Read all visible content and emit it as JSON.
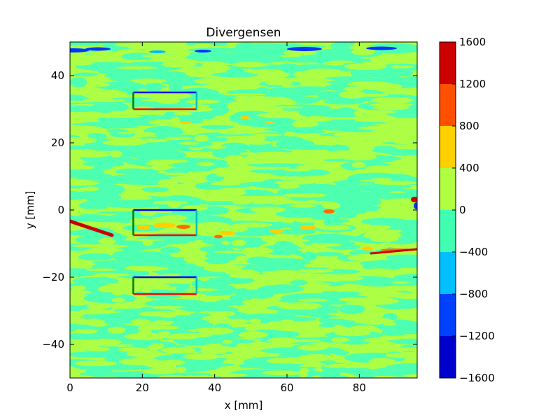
{
  "chart_data": {
    "type": "heatmap",
    "title": "Divergensen",
    "xlabel": "x [mm]",
    "ylabel": "y [mm]",
    "xlim": [
      0,
      96
    ],
    "ylim": [
      -50,
      50
    ],
    "xticks": [
      0,
      20,
      40,
      60,
      80
    ],
    "yticks": [
      -40,
      -20,
      0,
      20,
      40
    ],
    "xtick_labels": [
      "0",
      "20",
      "40",
      "60",
      "80"
    ],
    "ytick_labels": [
      "−40",
      "−20",
      "0",
      "20",
      "40"
    ],
    "colorbar": {
      "range": [
        -1600,
        1600
      ],
      "levels": [
        -1600,
        -1200,
        -800,
        -400,
        0,
        400,
        800,
        1200,
        1600
      ],
      "tick_labels": [
        "−1600",
        "−1200",
        "−800",
        "−400",
        "0",
        "400",
        "800",
        "1200",
        "1600"
      ],
      "colors": [
        "#0000cd",
        "#0040ff",
        "#00c0ff",
        "#40ffb0",
        "#b0ff40",
        "#ffd000",
        "#ff5000",
        "#cd0000"
      ]
    },
    "field_colors": {
      "negative_band": "#4dffb0",
      "positive_band": "#adff45",
      "strong_positive": "#ffd000",
      "stronger_positive": "#ff6a00",
      "max_positive": "#cc0000",
      "strong_negative": "#0033ff",
      "mid_negative": "#00b8ff"
    },
    "rectangles": [
      {
        "name": "box-top",
        "x": [
          17.5,
          35
        ],
        "y": [
          30,
          35
        ]
      },
      {
        "name": "box-middle",
        "x": [
          17.5,
          35
        ],
        "y": [
          -7.5,
          0
        ]
      },
      {
        "name": "box-bottom",
        "x": [
          17.5,
          35
        ],
        "y": [
          -25,
          -20
        ]
      }
    ],
    "rectangle_edge_colors": {
      "top": "#0000ff",
      "bottom": "#ff0000",
      "left": "#008000",
      "right": "#00bfbf"
    },
    "grid": false,
    "legend": "none"
  }
}
